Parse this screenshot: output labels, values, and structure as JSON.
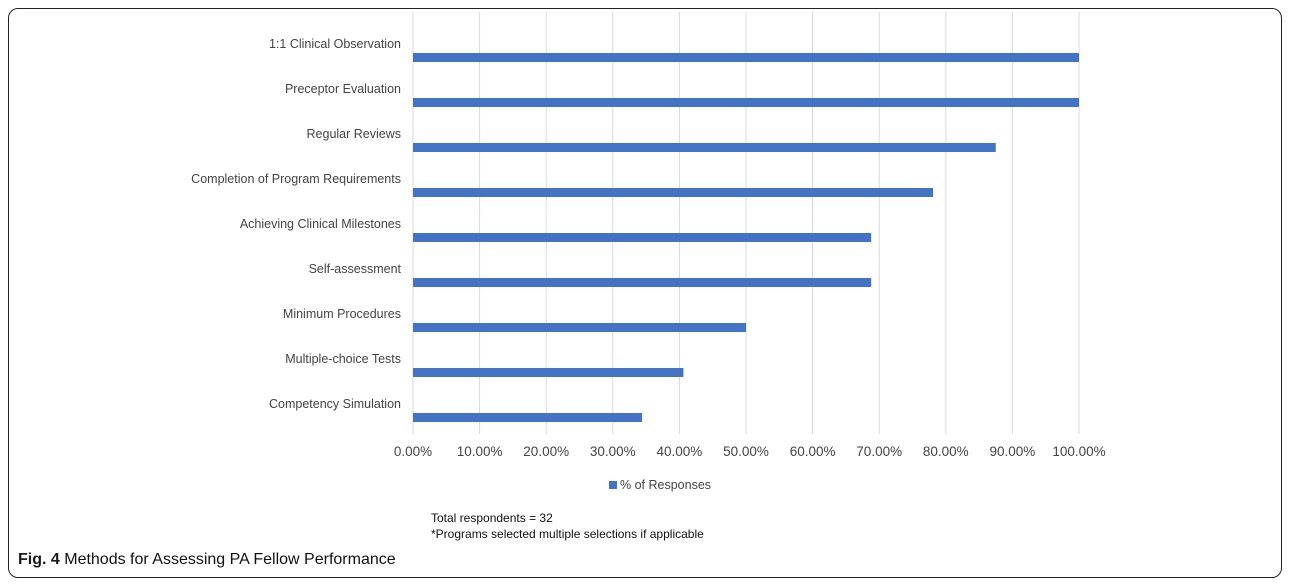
{
  "chart_data": {
    "type": "bar",
    "orientation": "horizontal",
    "categories": [
      "1:1 Clinical Observation",
      "Preceptor Evaluation",
      "Regular Reviews",
      "Completion of Program Requirements",
      "Achieving Clinical Milestones",
      "Self-assessment",
      "Minimum Procedures",
      "Multiple-choice Tests",
      "Competency Simulation"
    ],
    "series": [
      {
        "name": "% of Responses",
        "values": [
          100,
          100,
          87.5,
          78.1,
          68.8,
          68.8,
          50,
          40.6,
          34.4
        ],
        "color": "#4472C4"
      }
    ],
    "xlim": [
      0,
      100
    ],
    "x_ticks": [
      "0.00%",
      "10.00%",
      "20.00%",
      "30.00%",
      "40.00%",
      "50.00%",
      "60.00%",
      "70.00%",
      "80.00%",
      "90.00%",
      "100.00%"
    ],
    "grid": true,
    "legend_position": "bottom"
  },
  "notes": {
    "line1": "Total respondents = 32",
    "line2": "*Programs selected multiple selections if applicable"
  },
  "caption": {
    "label": "Fig. 4",
    "text": "Methods for Assessing PA Fellow Performance"
  }
}
